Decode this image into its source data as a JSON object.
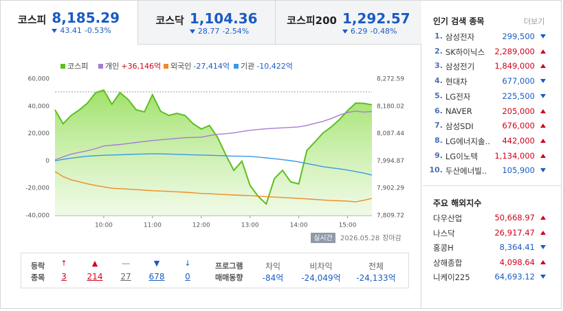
{
  "tabs": [
    {
      "name": "코스피",
      "value": "8,185.29",
      "change": "43.41",
      "rate": "-0.53%"
    },
    {
      "name": "코스닥",
      "value": "1,104.36",
      "change": "28.77",
      "rate": "-2.54%"
    },
    {
      "name": "코스피200",
      "value": "1,292.57",
      "change": "6.29",
      "rate": "-0.48%"
    }
  ],
  "chart_data": {
    "type": "line",
    "x": [
      "09:00",
      "09:10",
      "09:20",
      "09:30",
      "09:40",
      "09:50",
      "10:00",
      "10:10",
      "10:20",
      "10:30",
      "10:40",
      "10:50",
      "11:00",
      "11:10",
      "11:20",
      "11:30",
      "11:40",
      "11:50",
      "12:00",
      "12:10",
      "12:20",
      "12:30",
      "12:40",
      "12:50",
      "13:00",
      "13:10",
      "13:20",
      "13:30",
      "13:40",
      "13:50",
      "14:00",
      "14:10",
      "14:20",
      "14:30",
      "14:40",
      "14:50",
      "15:00",
      "15:10",
      "15:20",
      "15:30"
    ],
    "xlim": [
      "09:00",
      "15:30"
    ],
    "xticks": [
      "10:00",
      "11:00",
      "12:00",
      "13:00",
      "14:00",
      "15:00"
    ],
    "ylim": [
      -40000,
      60000
    ],
    "yticks": [
      {
        "value": 60000,
        "label": "60,000"
      },
      {
        "value": 40000,
        "label": "40,000"
      },
      {
        "value": 20000,
        "label": "20,000"
      },
      0,
      {
        "value": -20000,
        "label": "-20,000"
      },
      {
        "value": -40000,
        "label": "-40,000"
      }
    ],
    "y2lim": [
      7809.72,
      8272.59
    ],
    "y2ticks": [
      {
        "value": 8272.59,
        "label": "8,272.59"
      },
      {
        "value": 8180.02,
        "label": "8,180.02"
      },
      {
        "value": 8087.44,
        "label": "8,087.44"
      },
      {
        "value": 7994.87,
        "label": "7,994.87"
      },
      {
        "value": 7902.29,
        "label": "7,902.29"
      },
      {
        "value": 7809.72,
        "label": "7,809.72"
      }
    ],
    "reference_line": {
      "value": 8228.7,
      "axis": "y2"
    },
    "series": [
      {
        "name": "코스피",
        "color": "#5bbf1c",
        "axis": "y2",
        "fill": true,
        "values": [
          8168,
          8121,
          8149,
          8168,
          8191,
          8226,
          8235,
          8187,
          8226,
          8203,
          8168,
          8161,
          8219,
          8163,
          8149,
          8156,
          8149,
          8121,
          8103,
          8115,
          8075,
          8017,
          7963,
          7994,
          7912,
          7875,
          7849,
          7935,
          7963,
          7924,
          7917,
          8030,
          8060,
          8090,
          8110,
          8135,
          8165,
          8191,
          8190,
          8185
        ]
      },
      {
        "name": "개인",
        "net": "+36,146억",
        "color": "#a57cd3",
        "values": [
          800,
          3000,
          5000,
          6300,
          7500,
          9000,
          10900,
          11500,
          12000,
          12800,
          13500,
          14200,
          14900,
          15500,
          16000,
          16500,
          17000,
          17200,
          17400,
          18500,
          19500,
          19900,
          20500,
          21500,
          22400,
          23000,
          23500,
          23900,
          24200,
          24500,
          24900,
          26000,
          27500,
          29000,
          31000,
          33500,
          35500,
          36500,
          35800,
          36146
        ]
      },
      {
        "name": "외국인",
        "net": "-27,414억",
        "color": "#ef8a25",
        "values": [
          -7700,
          -11500,
          -13800,
          -15300,
          -16800,
          -18000,
          -19000,
          -20000,
          -20300,
          -20600,
          -21000,
          -21400,
          -21800,
          -22000,
          -22300,
          -22600,
          -22900,
          -23300,
          -23800,
          -24000,
          -24300,
          -24600,
          -24900,
          -25200,
          -25400,
          -25800,
          -26200,
          -26500,
          -26800,
          -27100,
          -27400,
          -27800,
          -28200,
          -28600,
          -29000,
          -29200,
          -29400,
          -30000,
          -28800,
          -27414
        ]
      },
      {
        "name": "기관",
        "net": "-10,422억",
        "color": "#3b98e6",
        "values": [
          0,
          1200,
          2000,
          2800,
          3400,
          3800,
          4100,
          4300,
          4500,
          4700,
          4900,
          5100,
          5300,
          5200,
          5000,
          4800,
          4600,
          4400,
          4300,
          4100,
          3900,
          3700,
          3500,
          3400,
          3300,
          2800,
          2200,
          1600,
          900,
          200,
          -700,
          -1900,
          -3000,
          -4200,
          -5000,
          -5800,
          -6700,
          -7800,
          -8900,
          -10422
        ]
      }
    ]
  },
  "status": {
    "badge": "실시간",
    "date": "2026.05.28",
    "state": "장마감"
  },
  "breadth": {
    "label": [
      "등락",
      "종목"
    ],
    "counts": [
      3,
      214,
      27,
      678,
      0
    ]
  },
  "program": {
    "label": [
      "프로그램",
      "매매동향"
    ],
    "items": [
      {
        "name": "차익",
        "value": "-84억"
      },
      {
        "name": "비차익",
        "value": "-24,049억"
      },
      {
        "name": "전체",
        "value": "-24,133억"
      }
    ]
  },
  "popular": {
    "title": "인기 검색 종목",
    "more": "더보기",
    "items": [
      {
        "rank": "1.",
        "name": "삼성전자",
        "price": "299,500",
        "dir": "down"
      },
      {
        "rank": "2.",
        "name": "SK하이닉스",
        "price": "2,289,000",
        "dir": "up"
      },
      {
        "rank": "3.",
        "name": "삼성전기",
        "price": "1,849,000",
        "dir": "up"
      },
      {
        "rank": "4.",
        "name": "현대차",
        "price": "677,000",
        "dir": "down"
      },
      {
        "rank": "5.",
        "name": "LG전자",
        "price": "225,500",
        "dir": "down"
      },
      {
        "rank": "6.",
        "name": "NAVER",
        "price": "205,000",
        "dir": "up"
      },
      {
        "rank": "7.",
        "name": "삼성SDI",
        "price": "676,000",
        "dir": "up"
      },
      {
        "rank": "8.",
        "name": "LG에너지솔..",
        "price": "442,000",
        "dir": "up"
      },
      {
        "rank": "9.",
        "name": "LG이노텍",
        "price": "1,134,000",
        "dir": "up"
      },
      {
        "rank": "10.",
        "name": "두산에너빌..",
        "price": "105,900",
        "dir": "down"
      }
    ]
  },
  "world": {
    "title": "주요 해외지수",
    "items": [
      {
        "name": "다우산업",
        "value": "50,668.97",
        "dir": "up"
      },
      {
        "name": "나스닥",
        "value": "26,917.47",
        "dir": "up"
      },
      {
        "name": "홍콩H",
        "value": "8,364.41",
        "dir": "down"
      },
      {
        "name": "상해종합",
        "value": "4,098.64",
        "dir": "up"
      },
      {
        "name": "니케이225",
        "value": "64,693.12",
        "dir": "down"
      }
    ]
  }
}
